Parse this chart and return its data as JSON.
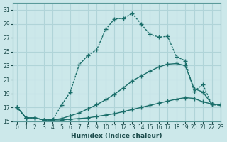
{
  "xlabel": "Humidex (Indice chaleur)",
  "bg_color": "#cce8ea",
  "grid_color": "#b0d4d8",
  "line_color": "#1a6e6a",
  "xlim": [
    -0.5,
    23
  ],
  "ylim": [
    15,
    32
  ],
  "xticks": [
    0,
    1,
    2,
    3,
    4,
    5,
    6,
    7,
    8,
    9,
    10,
    11,
    12,
    13,
    14,
    15,
    16,
    17,
    18,
    19,
    20,
    21,
    22,
    23
  ],
  "yticks": [
    15,
    17,
    19,
    21,
    23,
    25,
    27,
    29,
    31
  ],
  "line_top_x": [
    0,
    1,
    2,
    3,
    4,
    5,
    6,
    7,
    8,
    9,
    10,
    11,
    12,
    13,
    14,
    15,
    16,
    17,
    18,
    19,
    20,
    21,
    22,
    23
  ],
  "line_top_y": [
    17,
    15.5,
    15.5,
    15.2,
    15.2,
    17.3,
    19.2,
    23.1,
    24.5,
    25.3,
    28.2,
    29.7,
    29.8,
    30.5,
    29.0,
    27.5,
    27.1,
    27.2,
    24.3,
    23.7,
    19.3,
    20.3,
    17.4,
    17.3
  ],
  "line_mid_x": [
    0,
    1,
    2,
    3,
    4,
    5,
    6,
    7,
    8,
    9,
    10,
    11,
    12,
    13,
    14,
    15,
    16,
    17,
    18,
    19,
    20,
    21,
    22,
    23
  ],
  "line_mid_y": [
    17,
    15.5,
    15.5,
    15.2,
    15.2,
    15.4,
    15.8,
    16.2,
    16.8,
    17.4,
    18.1,
    18.9,
    19.8,
    20.8,
    21.5,
    22.2,
    22.8,
    23.2,
    23.3,
    23.0,
    19.7,
    19.2,
    17.5,
    17.4
  ],
  "line_bot_x": [
    0,
    1,
    2,
    3,
    4,
    5,
    6,
    7,
    8,
    9,
    10,
    11,
    12,
    13,
    14,
    15,
    16,
    17,
    18,
    19,
    20,
    21,
    22,
    23
  ],
  "line_bot_y": [
    17,
    15.5,
    15.5,
    15.2,
    15.2,
    15.2,
    15.3,
    15.4,
    15.5,
    15.7,
    15.9,
    16.1,
    16.4,
    16.7,
    17.0,
    17.3,
    17.6,
    17.9,
    18.2,
    18.4,
    18.3,
    17.8,
    17.5,
    17.4
  ],
  "marker": "+",
  "markersize": 4,
  "lw": 1.0
}
